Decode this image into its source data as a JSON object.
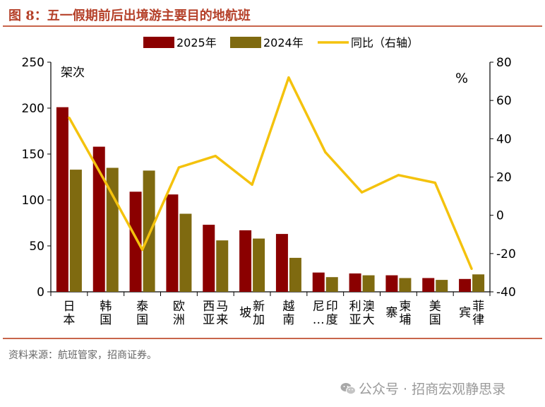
{
  "page": {
    "title": "图 8：五一假期前后出境游主要目的地航班",
    "source": "资料来源：航班管家，招商证券。",
    "watermark": "公众号 · 招商宏观静思录",
    "watermark_icon": "wechat-icon"
  },
  "colors": {
    "title": "#b5412a",
    "rule": "#c8654b",
    "series_2025": "#8b0000",
    "series_2024": "#7f6a10",
    "series_yoy": "#f4c20d"
  },
  "chart_data": {
    "type": "bar",
    "categories": [
      "日本",
      "韩国",
      "泰国",
      "欧洲",
      "西马来亚",
      "新加坡",
      "越南",
      "尼印度…",
      "利澳大亚",
      "柬寨埔",
      "美国",
      "菲宾律"
    ],
    "category_labels": [
      {
        "cols": [
          "日本"
        ]
      },
      {
        "cols": [
          "韩国"
        ]
      },
      {
        "cols": [
          "泰国"
        ]
      },
      {
        "cols": [
          "欧洲"
        ]
      },
      {
        "cols": [
          "西亚",
          "马来"
        ]
      },
      {
        "cols": [
          "坡",
          "新加"
        ]
      },
      {
        "cols": [
          "越南"
        ]
      },
      {
        "cols": [
          "尼…",
          "印度"
        ]
      },
      {
        "cols": [
          "利亚",
          "澳大"
        ]
      },
      {
        "cols": [
          "寨",
          "柬埔"
        ]
      },
      {
        "cols": [
          "美国"
        ]
      },
      {
        "cols": [
          "宾",
          "菲律"
        ]
      }
    ],
    "series": [
      {
        "name": "2025年",
        "type": "bar",
        "axis": "left",
        "values": [
          201,
          158,
          109,
          106,
          73,
          67,
          63,
          21,
          20,
          18,
          15,
          14
        ]
      },
      {
        "name": "2024年",
        "type": "bar",
        "axis": "left",
        "values": [
          133,
          135,
          132,
          85,
          56,
          58,
          37,
          16,
          18,
          15,
          13,
          19
        ]
      },
      {
        "name": "同比（右轴）",
        "type": "line",
        "axis": "right",
        "values": [
          51,
          17,
          -18,
          25,
          31,
          16,
          72,
          33,
          12,
          21,
          17,
          -28
        ]
      }
    ],
    "y_left": {
      "label": "架次",
      "ticks": [
        "0",
        "50",
        "100",
        "150",
        "200",
        "250"
      ],
      "lim": [
        0,
        250
      ]
    },
    "y_right": {
      "label": "%",
      "ticks": [
        "-40",
        "-20",
        "0",
        "20",
        "40",
        "60",
        "80"
      ],
      "lim": [
        -40,
        80
      ]
    },
    "legend_position": "top-center",
    "grid": false
  }
}
